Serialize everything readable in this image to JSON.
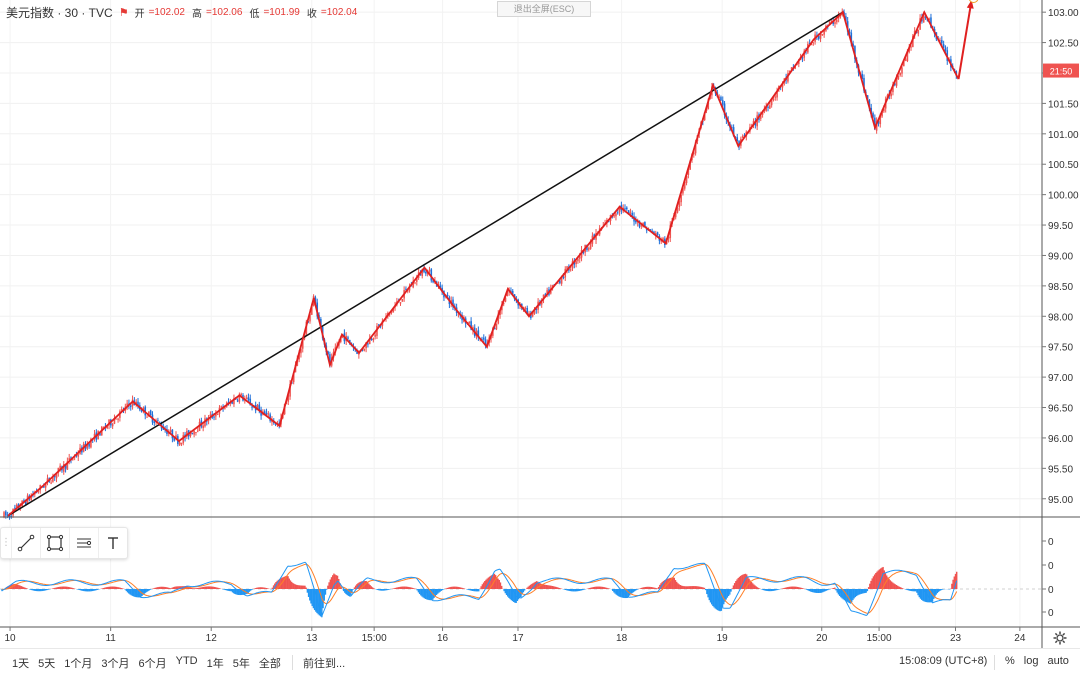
{
  "header": {
    "symbol": "美元指数 · 30 · TVC",
    "open_label": "开",
    "open": "=102.02",
    "high_label": "高",
    "high": "=102.06",
    "low_label": "低",
    "low": "=101.99",
    "close_label": "收",
    "close": "=102.04"
  },
  "fullscreen_exit": "退出全屏(ESC)",
  "price_badge": "21:50",
  "bottom": {
    "ranges": [
      "1天",
      "5天",
      "1个月",
      "3个月",
      "6个月",
      "YTD",
      "1年",
      "5年",
      "全部"
    ],
    "goto": "前往到...",
    "clock": "15:08:09 (UTC+8)",
    "opts": [
      "%",
      "log",
      "auto"
    ]
  },
  "drawing_tools": [
    "trend-line-icon",
    "rectangle-icon",
    "text-lines-icon",
    "text-tool-icon"
  ],
  "colors": {
    "up": "#ef5350",
    "down": "#1e6fd9",
    "zigzag": "#e02020",
    "trend": "#111111",
    "macd": "#2196f3",
    "signal": "#ff7f27"
  },
  "chart_data": [
    {
      "type": "candlestick",
      "title": "美元指数",
      "y_ticks": [
        "95.00",
        "95.50",
        "96.00",
        "96.50",
        "97.00",
        "97.50",
        "98.00",
        "98.50",
        "99.00",
        "99.50",
        "100.00",
        "100.50",
        "101.00",
        "101.50",
        "102.00",
        "102.50",
        "103.00"
      ],
      "ylim": [
        94.7,
        103.2
      ],
      "x_ticks": [
        "10",
        "11",
        "12",
        "13",
        "15:00",
        "16",
        "17",
        "18",
        "19",
        "20",
        "15:00",
        "23",
        "24"
      ],
      "x_tick_pos": [
        0,
        10,
        20,
        30,
        36.2,
        43,
        50.5,
        60.8,
        70.8,
        80.7,
        86.4,
        94,
        100.4
      ],
      "x_range": [
        -1,
        102.6
      ],
      "zigzag": [
        [
          -0.2,
          94.72
        ],
        [
          3.2,
          95.2
        ],
        [
          12.2,
          96.6
        ],
        [
          16.8,
          95.95
        ],
        [
          22.8,
          96.7
        ],
        [
          26.8,
          96.2
        ],
        [
          30.2,
          98.3
        ],
        [
          31.8,
          97.2
        ],
        [
          33,
          97.7
        ],
        [
          34.7,
          97.4
        ],
        [
          41.2,
          98.8
        ],
        [
          44.4,
          98.1
        ],
        [
          47.4,
          97.5
        ],
        [
          49.5,
          98.45
        ],
        [
          51.6,
          98.0
        ],
        [
          60.6,
          99.8
        ],
        [
          65.2,
          99.2
        ],
        [
          69.9,
          101.8
        ],
        [
          72.4,
          100.8
        ],
        [
          79.9,
          102.55
        ],
        [
          82.8,
          103.0
        ],
        [
          86.0,
          101.1
        ],
        [
          90.9,
          103.0
        ],
        [
          94.3,
          101.9
        ],
        [
          95.6,
          103.2
        ]
      ],
      "trendline": [
        [
          -0.2,
          94.72
        ],
        [
          82.8,
          103.0
        ]
      ],
      "last_price": 102.04,
      "series": [
        {
          "name": "up",
          "color": "#ef5350"
        },
        {
          "name": "down",
          "color": "#1e6fd9"
        }
      ]
    },
    {
      "type": "macd",
      "y_ticks": [
        "0",
        "0",
        "0",
        "0"
      ],
      "ylim": [
        -1,
        1
      ],
      "histogram_up_color": "#ef5350",
      "histogram_down_color": "#2196f3"
    }
  ]
}
